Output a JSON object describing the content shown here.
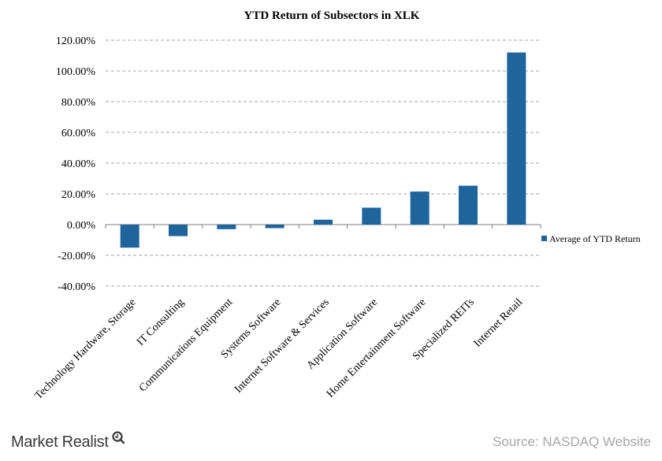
{
  "chart_data": {
    "type": "bar",
    "title": "YTD Return of Subsectors in XLK",
    "categories": [
      "Technology Hardware, Storage",
      "IT Consulting",
      "Communications Equipment",
      "Systems Software",
      "Internet Software & Services",
      "Application Software",
      "Home Entertainment Software",
      "Specialized REITs",
      "Internet Retail"
    ],
    "series": [
      {
        "name": "Average of YTD Return",
        "values": [
          -15.0,
          -7.5,
          -3.0,
          -2.3,
          3.2,
          11.0,
          21.5,
          25.3,
          112.0
        ],
        "color": "#1f649b"
      }
    ],
    "xlabel": "",
    "ylabel": "",
    "ylim": [
      -40,
      120
    ],
    "ytick_values": [
      -40,
      -20,
      0,
      20,
      40,
      60,
      80,
      100,
      120
    ],
    "ytick_labels": [
      "-40.00%",
      "-20.00%",
      "0.00%",
      "20.00%",
      "40.00%",
      "60.00%",
      "80.00%",
      "100.00%",
      "120.00%"
    ],
    "grid": true,
    "legend_position": "right"
  },
  "footer": {
    "brand": "Market Realist",
    "source": "Source: NASDAQ Website"
  },
  "colors": {
    "bar": "#1f649b",
    "grid": "#a6a6a6",
    "axis_text": "#000000"
  },
  "icons": {
    "brand_mark": "magnifier-q-icon"
  }
}
